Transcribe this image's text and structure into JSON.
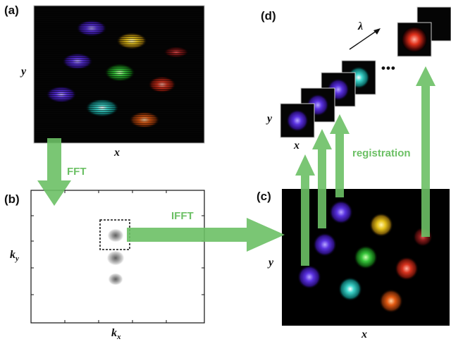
{
  "panels": {
    "a": {
      "letter": "(a)",
      "x_label": "x",
      "y_label": "y"
    },
    "b": {
      "letter": "(b)",
      "x_label_main": "k",
      "x_label_sub": "x",
      "y_label_main": "k",
      "y_label_sub": "y"
    },
    "c": {
      "letter": "(c)",
      "x_label": "x",
      "y_label": "y"
    },
    "d": {
      "letter": "(d)",
      "x_label": "x",
      "y_label": "y",
      "wavelength_symbol": "λ",
      "ellipsis": "•••"
    }
  },
  "operations": {
    "fft": "FFT",
    "ifft": "IFFT",
    "registration": "registration"
  },
  "colors": {
    "arrow": "#6cc065",
    "spot_colors": [
      "#6b3fe0",
      "#e5c21d",
      "#8b1e1e",
      "#4b2fd0",
      "#34c23a",
      "#d0331f",
      "#2fd0c7",
      "#5a30cc",
      "#e05a14"
    ]
  },
  "icons": [
    "wavelength-arrow-icon",
    "ellipsis-icon"
  ]
}
